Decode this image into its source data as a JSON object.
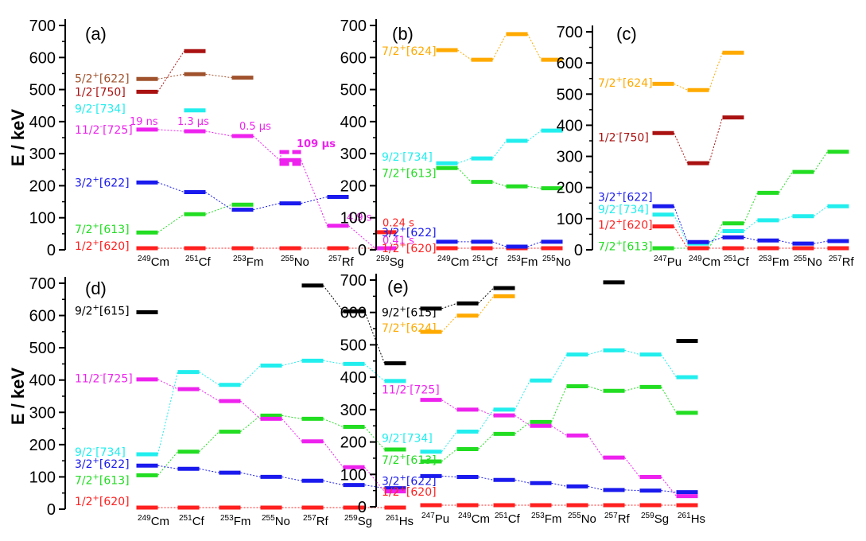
{
  "colors": {
    "620": "#ff2020",
    "613": "#22dd22",
    "622": "#1a1aee",
    "725": "#ee22ee",
    "734": "#22eeee",
    "750": "#aa1111",
    "615": "#000000",
    "624": "#ffaa00",
    "622b": "#a0522d"
  },
  "chart_data": [
    {
      "type": "level-scheme",
      "panel": "(a)",
      "ylabel": "E / keV",
      "ylim": [
        0,
        700
      ],
      "yticks": [
        0,
        100,
        200,
        300,
        400,
        500,
        600,
        700
      ],
      "nuclei": [
        {
          "mass": "249",
          "sym": "Cm"
        },
        {
          "mass": "251",
          "sym": "Cf"
        },
        {
          "mass": "253",
          "sym": "Fm"
        },
        {
          "mass": "255",
          "sym": "No"
        },
        {
          "mass": "257",
          "sym": "Rf"
        },
        {
          "mass": "259",
          "sym": "Sg"
        }
      ],
      "series": [
        {
          "name": "1/2+[620]",
          "j": "1/2",
          "p": "+",
          "nilsson": "[620]",
          "color": "620",
          "values": [
            5,
            5,
            5,
            5,
            5,
            5
          ]
        },
        {
          "name": "7/2+[613]",
          "j": "7/2",
          "p": "+",
          "nilsson": "[613]",
          "color": "613",
          "values": [
            54,
            111,
            141,
            null,
            null,
            null
          ]
        },
        {
          "name": "3/2+[622]",
          "j": "3/2",
          "p": "+",
          "nilsson": "[622]",
          "color": "622",
          "values": [
            210,
            180,
            125,
            145,
            165,
            null
          ]
        },
        {
          "name": "11/2-[725]",
          "j": "11/2",
          "p": "-",
          "nilsson": "[725]",
          "color": "725",
          "values": [
            375,
            370,
            355,
            280,
            75,
            5
          ]
        },
        {
          "name": "9/2-[734]",
          "j": "9/2",
          "p": "-",
          "nilsson": "[734]",
          "color": "734",
          "values": [
            null,
            435,
            null,
            null,
            null,
            null
          ]
        },
        {
          "name": "1/2-[750]",
          "j": "1/2",
          "p": "-",
          "nilsson": "[750]",
          "color": "750",
          "values": [
            493,
            620,
            null,
            null,
            null,
            null
          ]
        },
        {
          "name": "5/2+[622]",
          "j": "5/2",
          "p": "+",
          "nilsson": "[622]",
          "color": "622b",
          "values": [
            533,
            548,
            537,
            null,
            null,
            null
          ]
        }
      ],
      "annotations": [
        {
          "text": "19 ns",
          "color": "725",
          "x": 0,
          "y": 390
        },
        {
          "text": "1.3 μs",
          "color": "725",
          "x": 1,
          "y": 390
        },
        {
          "text": "0.5 μs",
          "color": "725",
          "x": 2.3,
          "y": 375
        },
        {
          "text": "109 μs",
          "color": "725",
          "x": 3.5,
          "y": 320,
          "bold": true
        },
        {
          "text": "4.9 s",
          "color": "725",
          "x": 4.55,
          "y": 90
        },
        {
          "text": "0.24 s",
          "color": "620",
          "x": 5.3,
          "y": 73
        },
        {
          "text": "0.41 s",
          "color": "725",
          "x": 5.3,
          "y": 18
        }
      ],
      "extra_levels": [
        {
          "x": 3,
          "y": 305,
          "color": "725",
          "dashed": true
        },
        {
          "x": 3,
          "y": 268,
          "color": "725",
          "dashed": true
        },
        {
          "x": 5,
          "y": 55,
          "color": "620"
        }
      ]
    },
    {
      "type": "level-scheme",
      "panel": "(b)",
      "ylim": [
        0,
        700
      ],
      "yticks": [
        0,
        100,
        200,
        300,
        400,
        500,
        600,
        700
      ],
      "nuclei": [
        {
          "mass": "249",
          "sym": "Cm"
        },
        {
          "mass": "251",
          "sym": "Cf"
        },
        {
          "mass": "253",
          "sym": "Fm"
        },
        {
          "mass": "255",
          "sym": "No"
        }
      ],
      "series": [
        {
          "name": "1/2+[620]",
          "j": "1/2",
          "p": "+",
          "nilsson": "[620]",
          "color": "620",
          "values": [
            5,
            5,
            5,
            5
          ]
        },
        {
          "name": "3/2+[622]",
          "j": "3/2",
          "p": "+",
          "nilsson": "[622]",
          "color": "622",
          "values": [
            25,
            25,
            10,
            25
          ]
        },
        {
          "name": "7/2+[613]",
          "j": "7/2",
          "p": "+",
          "nilsson": "[613]",
          "color": "613",
          "values": [
            255,
            212,
            198,
            192
          ]
        },
        {
          "name": "9/2-[734]",
          "j": "9/2",
          "p": "-",
          "nilsson": "[734]",
          "color": "734",
          "values": [
            270,
            285,
            340,
            372
          ]
        },
        {
          "name": "7/2+[624]",
          "j": "7/2",
          "p": "+",
          "nilsson": "[624]",
          "color": "624",
          "values": [
            623,
            593,
            673,
            593
          ]
        }
      ]
    },
    {
      "type": "level-scheme",
      "panel": "(c)",
      "ylim": [
        0,
        700
      ],
      "yticks": [
        0,
        100,
        200,
        300,
        400,
        500,
        600,
        700
      ],
      "nuclei": [
        {
          "mass": "247",
          "sym": "Pu"
        },
        {
          "mass": "249",
          "sym": "Cm"
        },
        {
          "mass": "251",
          "sym": "Cf"
        },
        {
          "mass": "253",
          "sym": "Fm"
        },
        {
          "mass": "255",
          "sym": "No"
        },
        {
          "mass": "257",
          "sym": "Rf"
        }
      ],
      "series": [
        {
          "name": "7/2+[613]",
          "j": "7/2",
          "p": "+",
          "nilsson": "[613]",
          "color": "613",
          "values": [
            5,
            5,
            85,
            183,
            250,
            315
          ]
        },
        {
          "name": "1/2+[620]",
          "j": "1/2",
          "p": "+",
          "nilsson": "[620]",
          "color": "620",
          "values": [
            75,
            5,
            5,
            5,
            5,
            5
          ]
        },
        {
          "name": "9/2-[734]",
          "j": "9/2",
          "p": "-",
          "nilsson": "[734]",
          "color": "734",
          "values": [
            113,
            20,
            60,
            95,
            108,
            140
          ]
        },
        {
          "name": "3/2+[622]",
          "j": "3/2",
          "p": "+",
          "nilsson": "[622]",
          "color": "622",
          "values": [
            140,
            25,
            40,
            30,
            20,
            28
          ]
        },
        {
          "name": "1/2-[750]",
          "j": "1/2",
          "p": "-",
          "nilsson": "[750]",
          "color": "750",
          "values": [
            375,
            278,
            425,
            null,
            null,
            null
          ]
        },
        {
          "name": "7/2+[624]",
          "j": "7/2",
          "p": "+",
          "nilsson": "[624]",
          "color": "624",
          "values": [
            533,
            513,
            633,
            null,
            null,
            null
          ]
        }
      ]
    },
    {
      "type": "level-scheme",
      "panel": "(d)",
      "ylabel": "E / keV",
      "ylim": [
        0,
        700
      ],
      "yticks": [
        0,
        100,
        200,
        300,
        400,
        500,
        600,
        700
      ],
      "nuclei": [
        {
          "mass": "249",
          "sym": "Cm"
        },
        {
          "mass": "251",
          "sym": "Cf"
        },
        {
          "mass": "253",
          "sym": "Fm"
        },
        {
          "mass": "255",
          "sym": "No"
        },
        {
          "mass": "257",
          "sym": "Rf"
        },
        {
          "mass": "259",
          "sym": "Sg"
        },
        {
          "mass": "261",
          "sym": "Hs"
        }
      ],
      "series": [
        {
          "name": "1/2+[620]",
          "j": "1/2",
          "p": "+",
          "nilsson": "[620]",
          "color": "620",
          "values": [
            5,
            5,
            5,
            5,
            5,
            5,
            5
          ]
        },
        {
          "name": "7/2+[613]",
          "j": "7/2",
          "p": "+",
          "nilsson": "[613]",
          "color": "613",
          "values": [
            105,
            178,
            240,
            290,
            280,
            255,
            185
          ]
        },
        {
          "name": "3/2+[622]",
          "j": "3/2",
          "p": "+",
          "nilsson": "[622]",
          "color": "622",
          "values": [
            135,
            125,
            113,
            100,
            88,
            75,
            65
          ]
        },
        {
          "name": "9/2-[734]",
          "j": "9/2",
          "p": "-",
          "nilsson": "[734]",
          "color": "734",
          "values": [
            170,
            425,
            385,
            445,
            460,
            450,
            397
          ]
        },
        {
          "name": "11/2-[725]",
          "j": "11/2",
          "p": "-",
          "nilsson": "[725]",
          "color": "725",
          "values": [
            402,
            372,
            335,
            280,
            210,
            130,
            55
          ]
        },
        {
          "name": "9/2+[615]",
          "j": "9/2",
          "p": "+",
          "nilsson": "[615]",
          "color": "615",
          "values": [
            610,
            null,
            null,
            null,
            693,
            613,
            452
          ]
        }
      ]
    },
    {
      "type": "level-scheme",
      "panel": "(e)",
      "ylim": [
        0,
        700
      ],
      "yticks": [
        0,
        100,
        200,
        300,
        400,
        500,
        600,
        700
      ],
      "nuclei": [
        {
          "mass": "247",
          "sym": "Pu"
        },
        {
          "mass": "249",
          "sym": "Cm"
        },
        {
          "mass": "251",
          "sym": "Cf"
        },
        {
          "mass": "253",
          "sym": "Fm"
        },
        {
          "mass": "255",
          "sym": "No"
        },
        {
          "mass": "257",
          "sym": "Rf"
        },
        {
          "mass": "259",
          "sym": "Sg"
        },
        {
          "mass": "261",
          "sym": "Hs"
        }
      ],
      "series": [
        {
          "name": "1/2+[620]",
          "j": "1/2",
          "p": "+",
          "nilsson": "[620]",
          "color": "620",
          "values": [
            5,
            5,
            5,
            5,
            5,
            5,
            5,
            5
          ]
        },
        {
          "name": "3/2+[622]",
          "j": "3/2",
          "p": "+",
          "nilsson": "[622]",
          "color": "622",
          "values": [
            95,
            92,
            83,
            73,
            63,
            52,
            50,
            45
          ]
        },
        {
          "name": "7/2+[613]",
          "j": "7/2",
          "p": "+",
          "nilsson": "[613]",
          "color": "613",
          "values": [
            140,
            178,
            225,
            262,
            372,
            358,
            370,
            290
          ]
        },
        {
          "name": "9/2-[734]",
          "j": "9/2",
          "p": "-",
          "nilsson": "[734]",
          "color": "734",
          "values": [
            170,
            232,
            300,
            390,
            470,
            483,
            470,
            400
          ]
        },
        {
          "name": "11/2-[725]",
          "j": "11/2",
          "p": "-",
          "nilsson": "[725]",
          "color": "725",
          "values": [
            330,
            300,
            282,
            250,
            220,
            152,
            92,
            33
          ]
        },
        {
          "name": "7/2+[624]",
          "j": "7/2",
          "p": "+",
          "nilsson": "[624]",
          "color": "624",
          "values": [
            540,
            590,
            650,
            null,
            null,
            null,
            null,
            null
          ]
        },
        {
          "name": "9/2+[615]",
          "j": "9/2",
          "p": "+",
          "nilsson": "[615]",
          "color": "615",
          "values": [
            612,
            628,
            675,
            null,
            null,
            693,
            null,
            512
          ]
        }
      ]
    }
  ]
}
